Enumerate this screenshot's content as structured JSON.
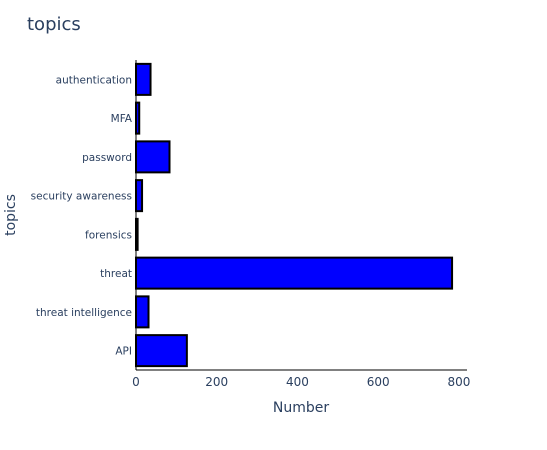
{
  "chart_data": {
    "type": "bar",
    "orientation": "horizontal",
    "title": "topics",
    "xlabel": "Number",
    "ylabel": "topics",
    "categories": [
      "authentication",
      "MFA",
      "password",
      "security awareness",
      "forensics",
      "threat",
      "threat intelligence",
      "API"
    ],
    "values": [
      36,
      8,
      83,
      15,
      4,
      783,
      31,
      126
    ],
    "xlim": [
      0,
      820
    ],
    "xticks": [
      0,
      200,
      400,
      600,
      800
    ],
    "grid": false,
    "bar_color": "#0000ff",
    "bar_edge_color": "#000000"
  }
}
